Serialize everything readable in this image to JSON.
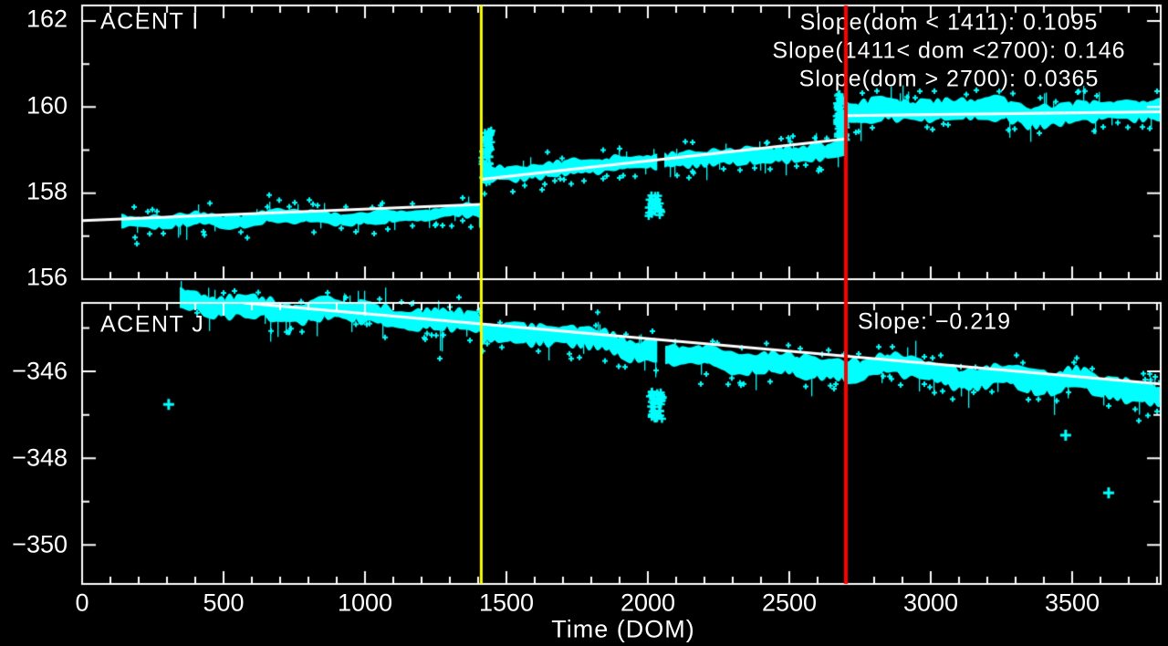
{
  "figure": {
    "background": "#000000",
    "colors": {
      "data": "#00ffff",
      "fit": "#ffffff",
      "axis": "#ffffff",
      "text": "#ffffff",
      "marker_yellow": "#ffff00",
      "marker_red": "#ff0000"
    }
  },
  "x_axis": {
    "label": "Time (DOM)",
    "xlim": [
      0,
      3813
    ],
    "ticks": [
      0,
      500,
      1000,
      1500,
      2000,
      2500,
      3000,
      3500
    ],
    "tick_labels": [
      "0",
      "500",
      "1000",
      "1500",
      "2000",
      "2500",
      "3000",
      "3500"
    ],
    "minor_step": 100
  },
  "chart_data": [
    {
      "type": "scatter",
      "marker": "plus",
      "title": "ACENT I",
      "xlim": [
        0,
        3813
      ],
      "ylim": [
        156,
        162.36
      ],
      "yticks": [
        156,
        158,
        160,
        162
      ],
      "ytick_labels": [
        "156",
        "158",
        "160",
        "162"
      ],
      "yminor_step": 1,
      "annotations": [
        "Slope(dom < 1411): 0.1095",
        "Slope(1411< dom <2700): 0.146",
        "Slope(dom > 2700): 0.0365"
      ],
      "slopes": [
        0.1095,
        0.146,
        0.0365
      ],
      "breakpoints": [
        1411,
        2700
      ],
      "fit_segments": [
        {
          "x0": 0,
          "y0": 157.36,
          "x1": 1411,
          "y1": 157.74
        },
        {
          "x0": 1413,
          "y0": 158.32,
          "x1": 2700,
          "y1": 159.26
        },
        {
          "x0": 2700,
          "y0": 159.8,
          "x1": 3813,
          "y1": 159.89
        }
      ],
      "band_segments": [
        {
          "x0": 139,
          "x1": 1410,
          "y0": 157.3,
          "y1": 157.58,
          "spread": 0.17
        },
        {
          "x0": 1415,
          "x1": 2698,
          "y0": 158.35,
          "y1": 159.05,
          "spread": 0.2
        },
        {
          "x0": 2702,
          "x1": 3813,
          "y0": 159.85,
          "y1": 159.95,
          "spread": 0.28
        }
      ],
      "gaps": [
        {
          "x0": 2032,
          "x1": 2058
        }
      ],
      "clusters": [
        {
          "x0": 1415,
          "x1": 1447,
          "y0": 158.25,
          "y1": 159.45,
          "n": 60
        },
        {
          "x0": 2668,
          "x1": 2700,
          "y0": 159.1,
          "y1": 160.3,
          "n": 70
        },
        {
          "x0": 2003,
          "x1": 2050,
          "y0": 157.45,
          "y1": 157.95,
          "n": 30
        }
      ],
      "outliers": [],
      "vlines": [
        {
          "x": 1411,
          "color": "#ffff00"
        },
        {
          "x": 2700,
          "color": "#ff0000"
        }
      ]
    },
    {
      "type": "scatter",
      "marker": "plus",
      "title": "ACENT J",
      "xlim": [
        0,
        3813
      ],
      "ylim": [
        -350.9,
        -344.42
      ],
      "yticks": [
        -350,
        -348,
        -346
      ],
      "ytick_labels": [
        "−350",
        "−348",
        "−346"
      ],
      "yminor_step": 1,
      "annotations": [
        "Slope: −0.219"
      ],
      "slopes": [
        -0.219
      ],
      "breakpoints": [],
      "fit_segments": [
        {
          "x0": 571,
          "y0": -344.42,
          "x1": 3813,
          "y1": -346.29
        }
      ],
      "band_segments": [
        {
          "x0": 345,
          "x1": 1408,
          "y0": -344.32,
          "y1": -344.95,
          "spread": 0.27
        },
        {
          "x0": 1413,
          "x1": 2030,
          "y0": -345.05,
          "y1": -345.52,
          "spread": 0.27
        },
        {
          "x0": 2060,
          "x1": 3813,
          "y0": -345.58,
          "y1": -346.4,
          "spread": 0.28
        }
      ],
      "gaps": [
        {
          "x0": 2032,
          "x1": 2058
        }
      ],
      "clusters": [
        {
          "x0": 2008,
          "x1": 2052,
          "y0": -346.45,
          "y1": -347.1,
          "n": 40
        }
      ],
      "outliers": [
        {
          "x": 306,
          "y": -346.76
        },
        {
          "x": 3477,
          "y": -347.47
        },
        {
          "x": 3629,
          "y": -348.8
        }
      ],
      "vlines": [
        {
          "x": 1411,
          "color": "#ffff00"
        },
        {
          "x": 2700,
          "color": "#ff0000"
        }
      ]
    }
  ]
}
